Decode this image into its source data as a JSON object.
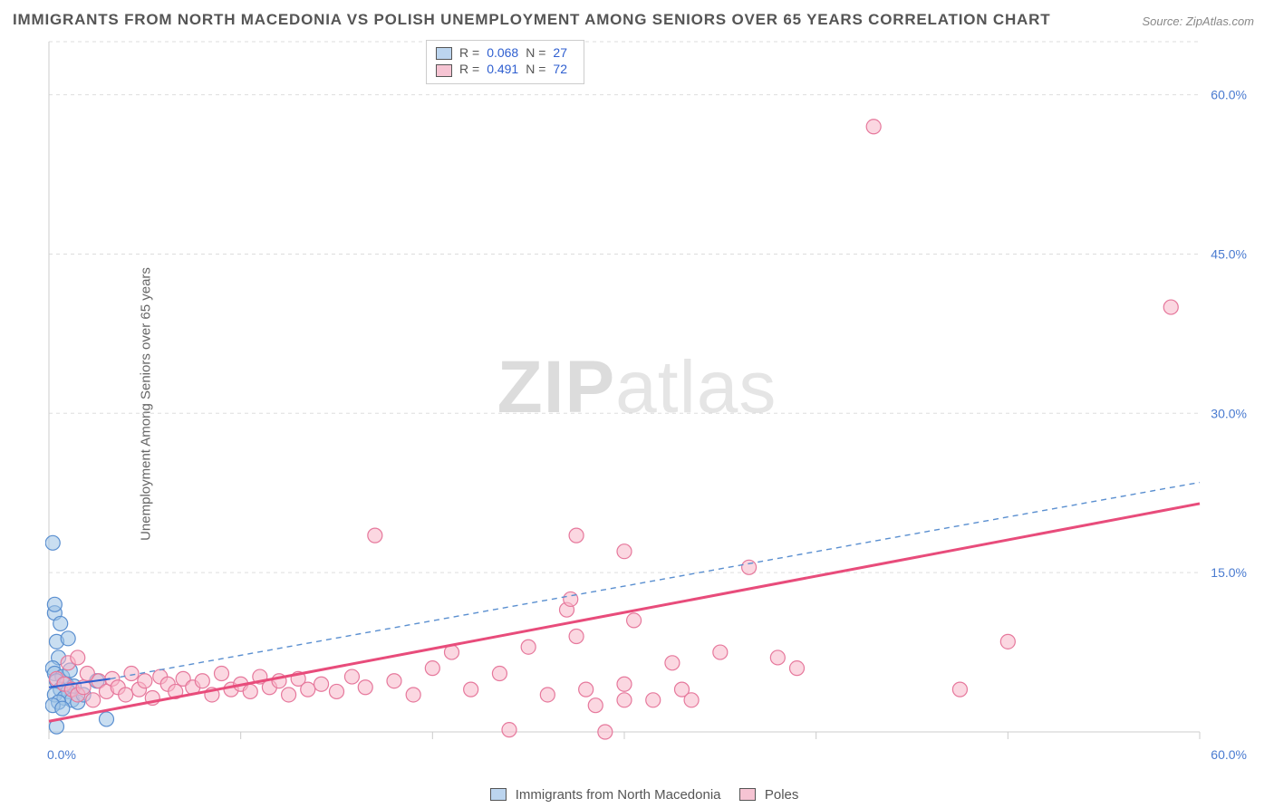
{
  "title": "IMMIGRANTS FROM NORTH MACEDONIA VS POLISH UNEMPLOYMENT AMONG SENIORS OVER 65 YEARS CORRELATION CHART",
  "source": "Source: ZipAtlas.com",
  "ylabel": "Unemployment Among Seniors over 65 years",
  "watermark_a": "ZIP",
  "watermark_b": "atlas",
  "chart": {
    "type": "scatter",
    "background_color": "#ffffff",
    "grid_color": "#dddddd",
    "xlim": [
      0,
      60
    ],
    "ylim": [
      0,
      65
    ],
    "ytick_labels": [
      "15.0%",
      "30.0%",
      "45.0%",
      "60.0%"
    ],
    "ytick_values": [
      15,
      30,
      45,
      60
    ],
    "xtick_start_label": "0.0%",
    "xtick_end_label": "60.0%",
    "xtick_positions": [
      0,
      10,
      20,
      30,
      40,
      50,
      60
    ],
    "marker_radius": 8,
    "series": [
      {
        "name": "Immigrants from North Macedonia",
        "key": "blue",
        "color_fill": "#9dc3e6",
        "color_stroke": "#5a8fd0",
        "R": "0.068",
        "N": "27",
        "trend": {
          "x1": 0,
          "y1": 4.2,
          "x2": 3.2,
          "y2": 5.0,
          "solid": true
        },
        "trend_ext": {
          "x1": 3.2,
          "y1": 5.0,
          "x2": 60,
          "y2": 23.5,
          "solid": false
        },
        "points": [
          [
            0.2,
            17.8
          ],
          [
            0.3,
            11.2
          ],
          [
            0.3,
            12.0
          ],
          [
            0.6,
            10.2
          ],
          [
            0.4,
            8.5
          ],
          [
            1.0,
            8.8
          ],
          [
            0.5,
            7.0
          ],
          [
            0.2,
            6.0
          ],
          [
            0.3,
            5.5
          ],
          [
            0.7,
            5.2
          ],
          [
            0.4,
            4.8
          ],
          [
            0.9,
            4.5
          ],
          [
            1.3,
            4.3
          ],
          [
            0.6,
            4.0
          ],
          [
            1.0,
            3.8
          ],
          [
            0.3,
            3.5
          ],
          [
            0.8,
            3.2
          ],
          [
            1.2,
            3.0
          ],
          [
            0.5,
            2.8
          ],
          [
            0.2,
            2.5
          ],
          [
            0.7,
            2.2
          ],
          [
            1.5,
            2.8
          ],
          [
            1.8,
            3.5
          ],
          [
            2.5,
            4.8
          ],
          [
            3.0,
            1.2
          ],
          [
            0.4,
            0.5
          ],
          [
            1.1,
            5.8
          ]
        ]
      },
      {
        "name": "Poles",
        "key": "pink",
        "color_fill": "#f8b6c8",
        "color_stroke": "#e6789c",
        "R": "0.491",
        "N": "72",
        "trend": {
          "x1": 0,
          "y1": 1.0,
          "x2": 60,
          "y2": 21.5,
          "solid": true
        },
        "points": [
          [
            0.4,
            5.0
          ],
          [
            0.8,
            4.5
          ],
          [
            1.2,
            4.0
          ],
          [
            1.5,
            3.5
          ],
          [
            1.8,
            4.2
          ],
          [
            2.0,
            5.5
          ],
          [
            2.3,
            3.0
          ],
          [
            2.6,
            4.8
          ],
          [
            3.0,
            3.8
          ],
          [
            3.3,
            5.0
          ],
          [
            3.6,
            4.2
          ],
          [
            4.0,
            3.5
          ],
          [
            4.3,
            5.5
          ],
          [
            4.7,
            4.0
          ],
          [
            5.0,
            4.8
          ],
          [
            5.4,
            3.2
          ],
          [
            5.8,
            5.2
          ],
          [
            6.2,
            4.5
          ],
          [
            6.6,
            3.8
          ],
          [
            7.0,
            5.0
          ],
          [
            7.5,
            4.2
          ],
          [
            8.0,
            4.8
          ],
          [
            8.5,
            3.5
          ],
          [
            9.0,
            5.5
          ],
          [
            9.5,
            4.0
          ],
          [
            10.0,
            4.5
          ],
          [
            10.5,
            3.8
          ],
          [
            11.0,
            5.2
          ],
          [
            11.5,
            4.2
          ],
          [
            12.0,
            4.8
          ],
          [
            12.5,
            3.5
          ],
          [
            13.0,
            5.0
          ],
          [
            13.5,
            4.0
          ],
          [
            14.2,
            4.5
          ],
          [
            15.0,
            3.8
          ],
          [
            15.8,
            5.2
          ],
          [
            16.5,
            4.2
          ],
          [
            17.0,
            18.5
          ],
          [
            18.0,
            4.8
          ],
          [
            19.0,
            3.5
          ],
          [
            20.0,
            6.0
          ],
          [
            21.0,
            7.5
          ],
          [
            22.0,
            4.0
          ],
          [
            23.5,
            5.5
          ],
          [
            24.0,
            0.2
          ],
          [
            25.0,
            8.0
          ],
          [
            26.0,
            3.5
          ],
          [
            27.0,
            11.5
          ],
          [
            27.2,
            12.5
          ],
          [
            27.5,
            18.5
          ],
          [
            27.5,
            9.0
          ],
          [
            28.0,
            4.0
          ],
          [
            28.5,
            2.5
          ],
          [
            29.0,
            0.0
          ],
          [
            30.0,
            17.0
          ],
          [
            30.0,
            4.5
          ],
          [
            30.0,
            3.0
          ],
          [
            30.5,
            10.5
          ],
          [
            31.5,
            3.0
          ],
          [
            32.5,
            6.5
          ],
          [
            33.0,
            4.0
          ],
          [
            33.5,
            3.0
          ],
          [
            35.0,
            7.5
          ],
          [
            36.5,
            15.5
          ],
          [
            38.0,
            7.0
          ],
          [
            39.0,
            6.0
          ],
          [
            43.0,
            57.0
          ],
          [
            47.5,
            4.0
          ],
          [
            50.0,
            8.5
          ],
          [
            58.5,
            40.0
          ],
          [
            1.0,
            6.5
          ],
          [
            1.5,
            7.0
          ]
        ]
      }
    ]
  },
  "legend_top": {
    "R_label": "R =",
    "N_label": "N ="
  },
  "legend_bottom": {
    "item1": "Immigrants from North Macedonia",
    "item2": "Poles"
  }
}
